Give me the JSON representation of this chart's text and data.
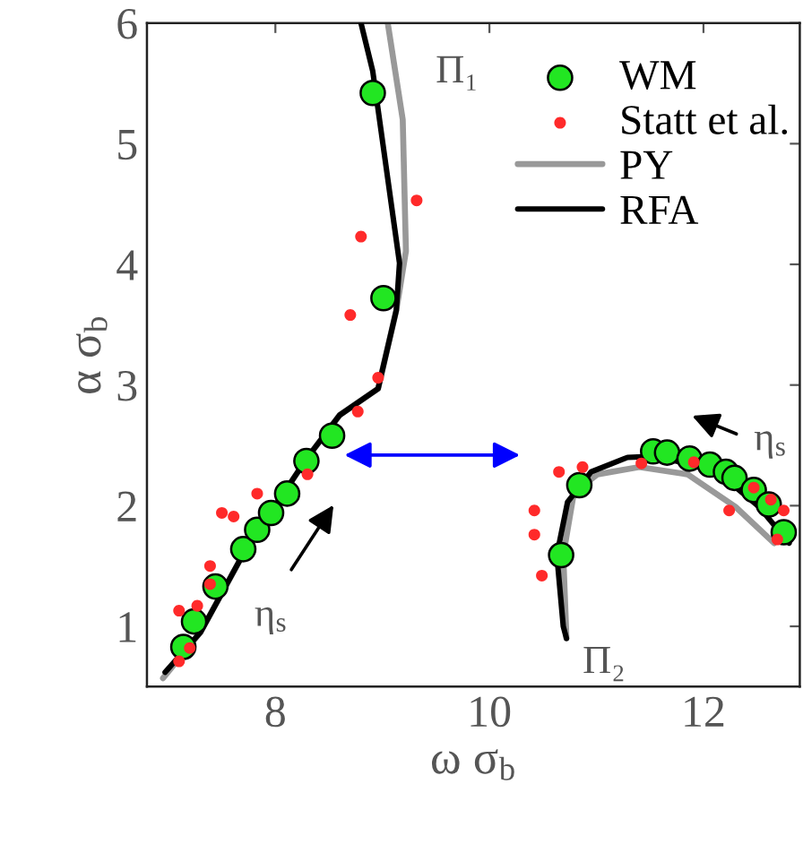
{
  "chart_data": {
    "type": "scatter",
    "xlabel": "ω σ$_{b}$",
    "ylabel": "α σ$_{b}$",
    "xlim": [
      6.8,
      12.9
    ],
    "ylim": [
      0.5,
      6
    ],
    "xticks": [
      8,
      10,
      12
    ],
    "yticks": [
      1,
      2,
      3,
      4,
      5,
      6
    ],
    "grid": false,
    "legend": "top right",
    "series": [
      {
        "name": "WM",
        "marker": "circle",
        "color": "#22e622",
        "x": [
          7.14,
          7.24,
          7.44,
          7.7,
          7.83,
          7.96,
          8.11,
          8.29,
          8.53,
          9.01,
          8.91,
          10.67,
          10.84,
          11.53,
          11.66,
          11.87,
          12.06,
          12.21,
          12.29,
          12.47,
          12.61,
          12.75
        ],
        "values": [
          0.83,
          1.04,
          1.33,
          1.64,
          1.8,
          1.94,
          2.1,
          2.37,
          2.58,
          3.72,
          5.42,
          1.59,
          2.17,
          2.45,
          2.44,
          2.39,
          2.34,
          2.28,
          2.23,
          2.13,
          2.01,
          1.78
        ]
      },
      {
        "name": "Statt et al.",
        "marker": "circle",
        "color": "#ff2a2a",
        "x": [
          7.1,
          7.2,
          7.1,
          7.27,
          7.39,
          7.39,
          7.5,
          7.61,
          7.83,
          8.3,
          8.77,
          8.96,
          8.7,
          8.8,
          9.32,
          10.65,
          10.87,
          10.42,
          10.42,
          10.49,
          11.42,
          11.91,
          12.24,
          12.47,
          12.63,
          12.75,
          12.69
        ],
        "values": [
          0.71,
          0.82,
          1.13,
          1.17,
          1.35,
          1.5,
          1.94,
          1.91,
          2.1,
          2.26,
          2.78,
          3.06,
          3.58,
          4.23,
          4.53,
          2.28,
          2.32,
          1.96,
          1.76,
          1.42,
          2.35,
          2.36,
          1.96,
          2.15,
          2.05,
          1.96,
          1.72
        ]
      },
      {
        "name": "PY",
        "type": "line",
        "line_style": "solid",
        "color": "#999999",
        "x": [
          6.95,
          7.3,
          7.7,
          8.0,
          8.3,
          8.6,
          8.96,
          9.13,
          9.22,
          9.19,
          9.05
        ],
        "values": [
          0.57,
          0.95,
          1.6,
          2.0,
          2.4,
          2.75,
          2.97,
          3.62,
          4.11,
          5.2,
          6.0
        ]
      },
      {
        "type": "line",
        "line_style": "solid",
        "color": "#999999",
        "x": [
          10.72,
          10.69,
          10.79,
          11.01,
          11.4,
          11.85,
          12.3,
          12.66
        ],
        "values": [
          0.9,
          1.59,
          2.11,
          2.26,
          2.32,
          2.26,
          1.99,
          1.69
        ]
      },
      {
        "name": "RFA",
        "type": "line",
        "line_style": "solid",
        "color": "#000000",
        "x": [
          6.97,
          7.3,
          7.7,
          8.0,
          8.3,
          8.6,
          8.96,
          9.13,
          9.16,
          9.05,
          8.91,
          8.8
        ],
        "values": [
          0.62,
          0.95,
          1.6,
          2.0,
          2.4,
          2.75,
          2.97,
          3.62,
          4.01,
          4.71,
          5.6,
          6.0
        ]
      },
      {
        "type": "line",
        "line_style": "solid",
        "color": "#000000",
        "x": [
          10.72,
          10.69,
          10.63,
          10.73,
          10.95,
          11.29,
          11.57,
          12.13,
          12.52,
          12.8
        ],
        "values": [
          0.9,
          1.0,
          1.59,
          2.03,
          2.28,
          2.4,
          2.41,
          2.28,
          1.99,
          1.69
        ]
      }
    ],
    "annotations": [
      "Π₁",
      "Π₂",
      "η$_{s}$",
      "η$_{s}$"
    ]
  }
}
